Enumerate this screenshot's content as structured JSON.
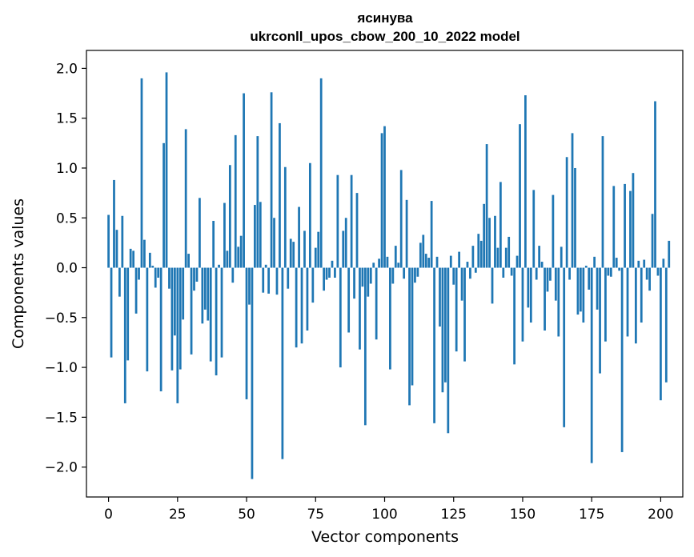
{
  "chart_data": {
    "type": "bar",
    "title_line1": "ясинува",
    "title_line2": "ukrconll_upos_cbow_200_10_2022 model",
    "xlabel": "Vector components",
    "ylabel": "Components values",
    "xlim": [
      -8,
      208
    ],
    "ylim": [
      -2.3,
      2.18
    ],
    "xticks": [
      0,
      25,
      50,
      75,
      100,
      125,
      150,
      175,
      200
    ],
    "yticks": [
      2.0,
      1.5,
      1.0,
      0.5,
      0.0,
      -0.5,
      -1.0,
      -1.5,
      -2.0
    ],
    "ytick_labels": [
      "2.0",
      "1.5",
      "1.0",
      "0.5",
      "0.0",
      "−0.5",
      "−1.0",
      "−1.5",
      "−2.0"
    ],
    "bar_color": "#1f77b4",
    "values": [
      0.53,
      -0.9,
      0.88,
      0.38,
      -0.29,
      0.52,
      -1.36,
      -0.93,
      0.19,
      0.17,
      -0.46,
      -0.12,
      1.9,
      0.28,
      -1.04,
      0.15,
      0.02,
      -0.2,
      -0.1,
      -1.24,
      1.25,
      1.96,
      -0.21,
      -1.03,
      -0.68,
      -1.36,
      -1.02,
      -0.52,
      1.39,
      0.14,
      -0.87,
      -0.23,
      -0.14,
      0.7,
      -0.56,
      -0.42,
      -0.53,
      -0.94,
      0.47,
      -1.08,
      0.03,
      -0.9,
      0.65,
      0.17,
      1.03,
      -0.15,
      1.33,
      0.21,
      0.32,
      1.75,
      -1.32,
      -0.37,
      -2.12,
      0.63,
      1.32,
      0.66,
      -0.25,
      0.03,
      -0.26,
      1.76,
      0.5,
      -0.27,
      1.45,
      -1.92,
      1.01,
      -0.21,
      0.29,
      0.26,
      -0.8,
      0.61,
      -0.76,
      0.37,
      -0.63,
      1.05,
      -0.35,
      0.2,
      0.36,
      1.9,
      -0.23,
      -0.12,
      -0.1,
      0.07,
      -0.1,
      0.93,
      -1.0,
      0.37,
      0.5,
      -0.65,
      0.93,
      -0.31,
      0.75,
      -0.82,
      -0.19,
      -1.58,
      -0.29,
      -0.16,
      0.05,
      -0.72,
      0.09,
      1.35,
      1.42,
      0.11,
      -1.02,
      -0.16,
      0.22,
      0.05,
      0.98,
      -0.11,
      0.68,
      -1.38,
      -1.18,
      -0.15,
      -0.09,
      0.25,
      0.33,
      0.14,
      0.1,
      0.67,
      -1.56,
      0.11,
      -0.59,
      -1.25,
      -1.15,
      -1.66,
      0.12,
      -0.17,
      -0.84,
      0.16,
      -0.33,
      -0.94,
      0.06,
      -0.11,
      0.22,
      -0.05,
      0.34,
      0.27,
      0.64,
      1.24,
      0.5,
      -0.36,
      0.52,
      0.2,
      0.86,
      -0.1,
      0.2,
      0.31,
      -0.08,
      -0.97,
      0.12,
      1.44,
      -0.74,
      1.73,
      -0.4,
      -0.55,
      0.78,
      -0.12,
      0.22,
      0.06,
      -0.63,
      -0.24,
      -0.13,
      0.73,
      -0.33,
      -0.69,
      0.21,
      -1.6,
      1.11,
      -0.12,
      1.35,
      1.0,
      -0.47,
      -0.44,
      -0.55,
      0.02,
      -0.22,
      -1.96,
      0.11,
      -0.42,
      -1.06,
      1.32,
      -0.74,
      -0.08,
      -0.09,
      0.82,
      0.1,
      -0.03,
      -1.85,
      0.84,
      -0.69,
      0.77,
      0.95,
      -0.76,
      0.07,
      -0.55,
      0.08,
      -0.12,
      -0.23,
      0.54,
      1.67,
      -0.08,
      -1.33,
      0.09,
      -1.15,
      0.27
    ]
  }
}
